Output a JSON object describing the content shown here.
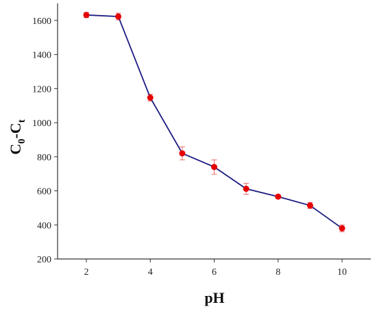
{
  "chart_data": {
    "type": "line",
    "title": "",
    "xlabel": "pH",
    "ylabel": {
      "main1": "C",
      "sub1": "0",
      "dash": "-",
      "main2": "C",
      "sub2": "t"
    },
    "xlim": [
      1.1,
      10.9
    ],
    "ylim": [
      200,
      1700
    ],
    "xticks": [
      "2",
      "4",
      "6",
      "8",
      "10"
    ],
    "xtick_values": [
      2,
      4,
      6,
      8,
      10
    ],
    "yticks": [
      "200",
      "400",
      "600",
      "800",
      "1000",
      "1200",
      "1400",
      "1600"
    ],
    "ytick_values": [
      200,
      400,
      600,
      800,
      1000,
      1200,
      1400,
      1600
    ],
    "grid": false,
    "series": [
      {
        "x": [
          2,
          3,
          4,
          5,
          6,
          7,
          8,
          9,
          10
        ],
        "values": [
          1632,
          1623,
          1147,
          820,
          740,
          612,
          566,
          514,
          380
        ],
        "error": [
          15,
          20,
          20,
          38,
          42,
          32,
          10,
          18,
          20
        ],
        "line_color": "#1a1a80",
        "marker_color": "#e60000",
        "errorbar_color": "#e86b6b"
      }
    ]
  }
}
